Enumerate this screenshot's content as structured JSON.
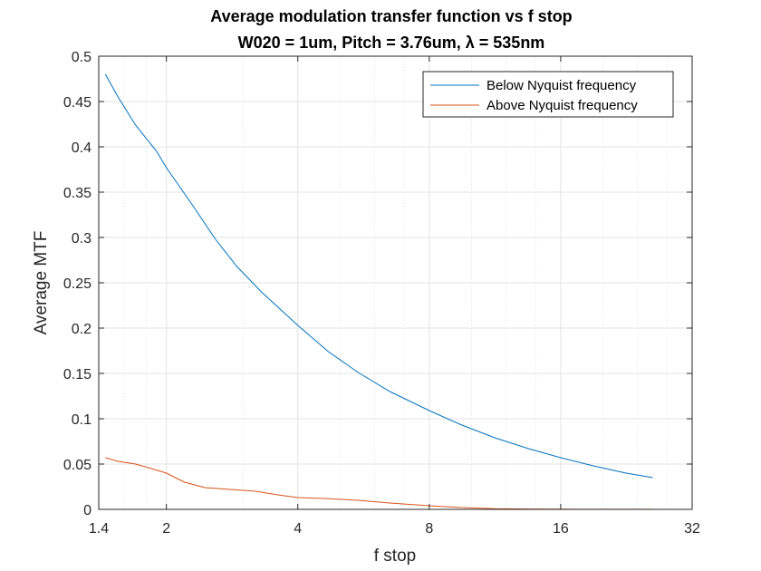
{
  "chart_data": {
    "type": "line",
    "title": "Average modulation transfer function vs f stop",
    "subtitle": "W020 = 1um, Pitch = 3.76um, λ = 535nm",
    "xlabel": "f stop",
    "ylabel": "Average MTF",
    "xscale": "log2",
    "xlim": [
      1.4,
      32
    ],
    "ylim": [
      0,
      0.5
    ],
    "xticks": [
      1.4,
      2,
      4,
      8,
      16,
      32
    ],
    "xtick_labels": [
      "1.4",
      "2",
      "4",
      "8",
      "16",
      "32"
    ],
    "yticks": [
      0,
      0.05,
      0.1,
      0.15,
      0.2,
      0.25,
      0.3,
      0.35,
      0.4,
      0.45,
      0.5
    ],
    "ytick_labels": [
      "0",
      "0.05",
      "0.1",
      "0.15",
      "0.2",
      "0.25",
      "0.3",
      "0.35",
      "0.4",
      "0.45",
      "0.5"
    ],
    "grid": true,
    "legend_position": "top-right",
    "series": [
      {
        "name": "Below Nyquist frequency",
        "color": "#0072BD",
        "x": [
          1.45,
          1.55,
          1.7,
          1.9,
          2.0,
          2.3,
          2.6,
          2.9,
          3.3,
          4.0,
          4.7,
          5.5,
          6.5,
          8.0,
          9.5,
          11.3,
          13.5,
          16.0,
          19.0,
          22.6,
          26.0
        ],
        "y": [
          0.48,
          0.455,
          0.424,
          0.395,
          0.377,
          0.335,
          0.297,
          0.268,
          0.24,
          0.203,
          0.174,
          0.151,
          0.13,
          0.109,
          0.093,
          0.079,
          0.067,
          0.057,
          0.048,
          0.04,
          0.035
        ]
      },
      {
        "name": "Above Nyquist frequency",
        "color": "#D95319",
        "x": [
          1.45,
          1.55,
          1.7,
          1.85,
          2.0,
          2.2,
          2.45,
          2.8,
          3.2,
          3.6,
          4.0,
          4.6,
          5.5,
          6.5,
          8.0,
          9.5,
          11.3,
          13.5,
          16.0,
          19.0,
          22.6,
          26.0
        ],
        "y": [
          0.057,
          0.053,
          0.05,
          0.045,
          0.04,
          0.03,
          0.024,
          0.022,
          0.02,
          0.016,
          0.013,
          0.012,
          0.01,
          0.007,
          0.004,
          0.002,
          0.0008,
          0.0004,
          0.0002,
          0.0001,
          0.0001,
          0.0001
        ]
      }
    ]
  }
}
